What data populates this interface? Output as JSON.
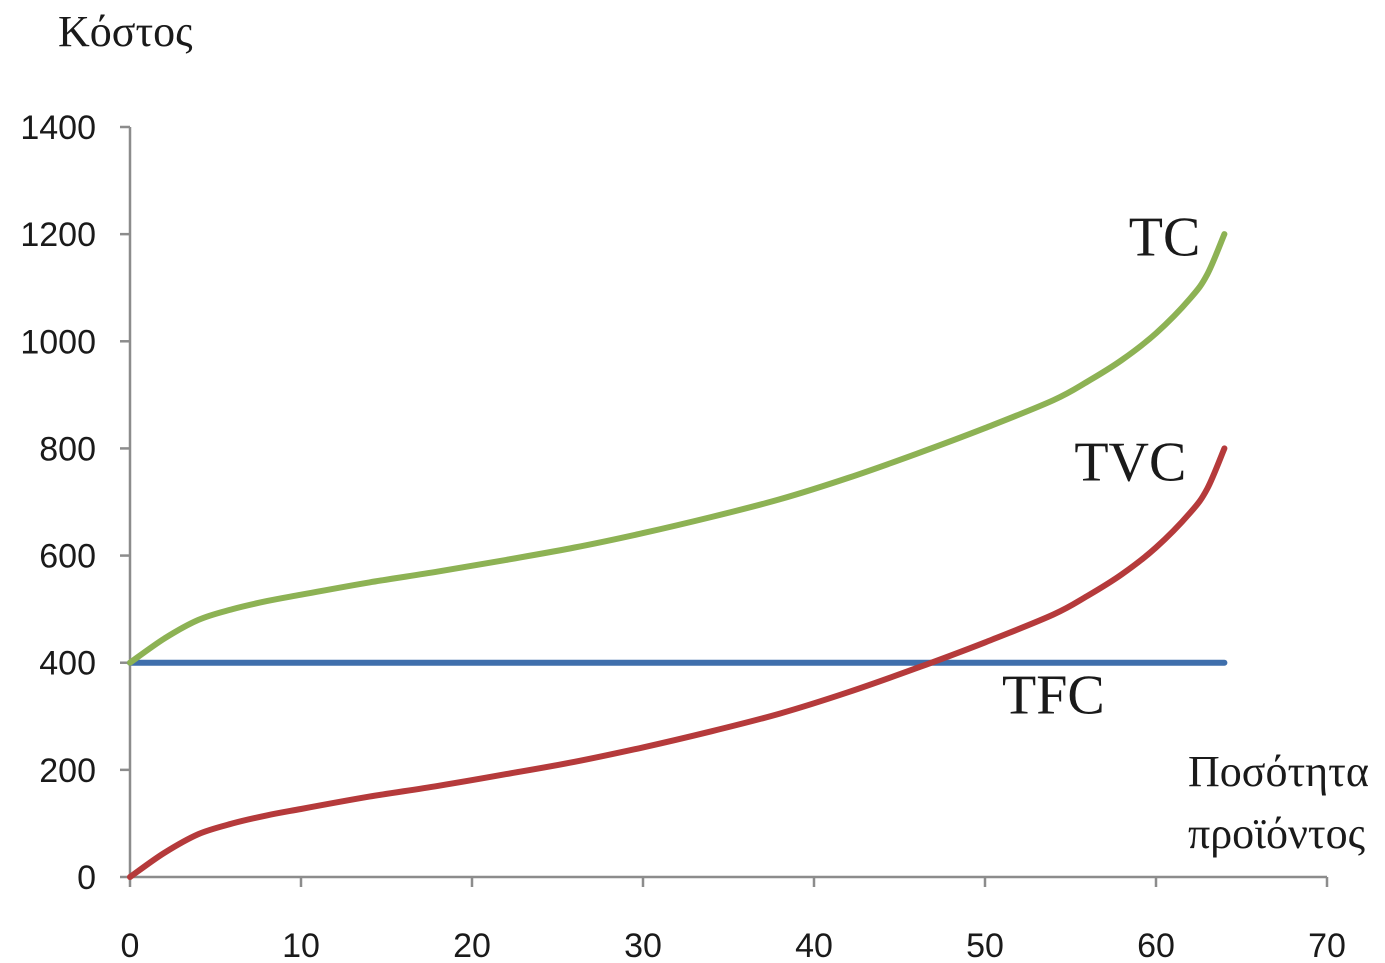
{
  "chart_data": {
    "type": "line",
    "ylabel": "Κόστος",
    "xlabel_lines": [
      "Ποσότητα",
      "προϊόντος"
    ],
    "xlim": [
      0,
      70
    ],
    "ylim": [
      0,
      1400
    ],
    "x_ticks": [
      "0",
      "10",
      "20",
      "30",
      "40",
      "50",
      "60",
      "70"
    ],
    "y_ticks": [
      "0",
      "200",
      "400",
      "600",
      "800",
      "1000",
      "1200",
      "1400"
    ],
    "grid": false,
    "series": [
      {
        "name": "TC",
        "color": "#8db254",
        "x": [
          0,
          2,
          4,
          6,
          8,
          10,
          14,
          18,
          22,
          26,
          30,
          34,
          38,
          42,
          46,
          50,
          54,
          56,
          58,
          60,
          62,
          63,
          64
        ],
        "y": [
          400,
          445,
          480,
          500,
          515,
          527,
          550,
          570,
          592,
          615,
          642,
          672,
          705,
          745,
          790,
          838,
          890,
          925,
          965,
          1015,
          1080,
          1125,
          1200
        ]
      },
      {
        "name": "TVC",
        "color": "#b53a3b",
        "x": [
          0,
          2,
          4,
          6,
          8,
          10,
          14,
          18,
          22,
          26,
          30,
          34,
          38,
          42,
          46,
          50,
          54,
          56,
          58,
          60,
          62,
          63,
          64
        ],
        "y": [
          0,
          45,
          80,
          100,
          115,
          127,
          150,
          170,
          192,
          215,
          242,
          272,
          305,
          345,
          390,
          438,
          490,
          525,
          565,
          615,
          680,
          725,
          800
        ]
      },
      {
        "name": "TFC",
        "color": "#3f6fac",
        "x": [
          0,
          64
        ],
        "y": [
          400,
          400
        ]
      }
    ],
    "annotations": [
      {
        "text": "TC",
        "x": 60.5,
        "y": 1160
      },
      {
        "text": "TVC",
        "x": 58.5,
        "y": 740
      },
      {
        "text": "TFC",
        "x": 54,
        "y": 305
      }
    ]
  }
}
